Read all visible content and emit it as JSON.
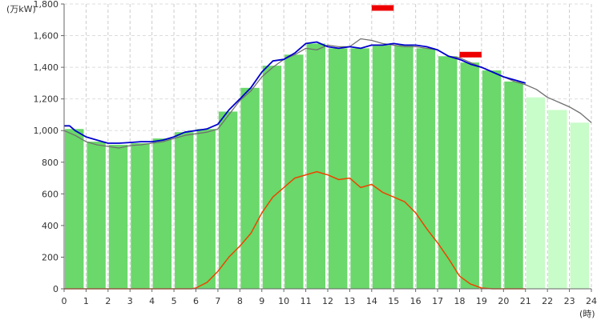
{
  "chart_data": {
    "type": "bar",
    "y_unit_label": "(万kW)",
    "x_unit_label": "(時)",
    "ylim": [
      0,
      1800
    ],
    "xlim": [
      0,
      24
    ],
    "y_ticks": [
      0,
      200,
      400,
      600,
      800,
      1000,
      1200,
      1400,
      1600,
      1800
    ],
    "y_tick_labels": [
      "0",
      "200",
      "400",
      "600",
      "800",
      "1,000",
      "1,200",
      "1,400",
      "1,600",
      "1,800"
    ],
    "x_ticks": [
      0,
      1,
      2,
      3,
      4,
      5,
      6,
      7,
      8,
      9,
      10,
      11,
      12,
      13,
      14,
      15,
      16,
      17,
      18,
      19,
      20,
      21,
      22,
      23,
      24
    ],
    "x_tick_labels": [
      "0",
      "1",
      "2",
      "3",
      "4",
      "5",
      "6",
      "7",
      "8",
      "9",
      "10",
      "11",
      "12",
      "13",
      "14",
      "15",
      "16",
      "17",
      "18",
      "19",
      "20",
      "21",
      "22",
      "23",
      "24"
    ],
    "grid": true,
    "bar_colors": {
      "actual": "#6ad86a",
      "forecast": "#c8fcc8"
    },
    "hourly_demand": {
      "name": "hourly demand",
      "values": [
        1010,
        930,
        910,
        920,
        950,
        990,
        1010,
        1120,
        1270,
        1410,
        1480,
        1550,
        1520,
        1520,
        1540,
        1540,
        1520,
        1470,
        1430,
        1380,
        1310,
        1210,
        1130,
        1050
      ],
      "forecast_from_hour": 21
    },
    "line_colors": {
      "realtime_demand": "#0000cc",
      "previous_day": "#707070",
      "solar": "#ee4400",
      "peak_marker": "#ee0000"
    },
    "lines": {
      "realtime_demand": {
        "x": [
          0,
          0.25,
          0.5,
          1,
          1.5,
          2,
          2.5,
          3,
          3.5,
          4,
          4.5,
          5,
          5.5,
          6,
          6.5,
          7,
          7.5,
          8,
          8.5,
          9,
          9.5,
          10,
          10.5,
          11,
          11.5,
          12,
          12.5,
          13,
          13.5,
          14,
          14.5,
          15,
          15.5,
          16,
          16.5,
          17,
          17.5,
          18,
          18.5,
          19,
          19.5,
          20,
          20.5,
          21
        ],
        "y": [
          1030,
          1030,
          1000,
          960,
          940,
          920,
          920,
          925,
          930,
          930,
          940,
          960,
          990,
          1000,
          1010,
          1040,
          1130,
          1200,
          1270,
          1370,
          1440,
          1450,
          1490,
          1550,
          1560,
          1530,
          1520,
          1530,
          1520,
          1540,
          1540,
          1550,
          1540,
          1540,
          1530,
          1510,
          1470,
          1450,
          1420,
          1400,
          1370,
          1340,
          1320,
          1300
        ]
      },
      "previous_day": {
        "x": [
          0,
          0.5,
          1,
          1.5,
          2,
          2.5,
          3,
          3.5,
          4,
          4.5,
          5,
          5.5,
          6,
          6.5,
          7,
          7.5,
          8,
          8.5,
          9,
          9.5,
          10,
          10.5,
          11,
          11.5,
          12,
          12.5,
          13,
          13.5,
          14,
          14.5,
          15,
          15.5,
          16,
          16.5,
          17,
          17.5,
          18,
          18.5,
          19,
          19.5,
          20,
          20.5,
          21,
          21.5,
          22,
          22.5,
          23,
          23.5,
          24
        ],
        "y": [
          1000,
          970,
          930,
          910,
          900,
          890,
          905,
          910,
          920,
          930,
          950,
          970,
          980,
          990,
          1010,
          1100,
          1190,
          1250,
          1340,
          1400,
          1450,
          1480,
          1520,
          1510,
          1540,
          1530,
          1530,
          1580,
          1570,
          1550,
          1540,
          1530,
          1530,
          1520,
          1510,
          1470,
          1460,
          1430,
          1400,
          1370,
          1340,
          1310,
          1290,
          1260,
          1210,
          1180,
          1150,
          1110,
          1050
        ]
      },
      "solar": {
        "x": [
          0,
          5.8,
          6,
          6.5,
          7,
          7.5,
          8,
          8.5,
          9,
          9.5,
          10,
          10.5,
          11,
          11.5,
          12,
          12.5,
          13,
          13.5,
          14,
          14.5,
          15,
          15.5,
          16,
          16.5,
          17,
          17.5,
          18,
          18.5,
          19,
          19.5,
          20,
          20.5,
          21
        ],
        "y": [
          0,
          0,
          5,
          40,
          110,
          200,
          270,
          350,
          480,
          580,
          640,
          700,
          720,
          740,
          720,
          690,
          700,
          640,
          660,
          610,
          580,
          550,
          480,
          380,
          290,
          190,
          80,
          30,
          5,
          0,
          0,
          0,
          0
        ]
      }
    },
    "peak_markers": [
      {
        "x_start": 14,
        "x_end": 15,
        "y": 1775
      },
      {
        "x_start": 18,
        "x_end": 19,
        "y": 1480
      }
    ]
  }
}
